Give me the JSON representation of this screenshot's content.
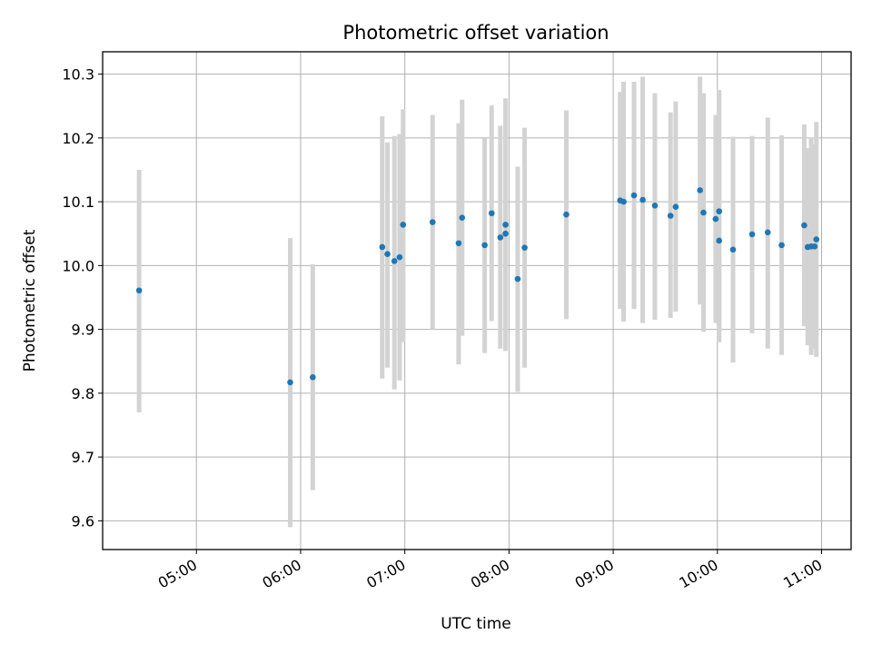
{
  "chart_data": {
    "type": "scatter",
    "title": "Photometric offset variation",
    "xlabel": "UTC time",
    "ylabel": "Photometric offset",
    "x_unit": "UTC time (HH:MM)",
    "xlim": [
      "04:06",
      "11:17"
    ],
    "ylim": [
      9.555,
      10.335
    ],
    "xticks": [
      "05:00",
      "06:00",
      "07:00",
      "08:00",
      "09:00",
      "10:00",
      "11:00"
    ],
    "yticks": [
      "9.6",
      "9.7",
      "9.8",
      "9.9",
      "10.0",
      "10.1",
      "10.2",
      "10.3"
    ],
    "grid": true,
    "legend": "none",
    "colors": {
      "point": "#1f77b4",
      "errorbar": "#d3d3d3",
      "grid": "#b0b0b0"
    },
    "points": [
      {
        "x": "04:27",
        "y": 9.961,
        "low": 9.77,
        "high": 10.15
      },
      {
        "x": "05:54",
        "y": 9.817,
        "low": 9.59,
        "high": 10.043
      },
      {
        "x": "06:07",
        "y": 9.825,
        "low": 9.648,
        "high": 10.002
      },
      {
        "x": "06:47",
        "y": 10.029,
        "low": 9.823,
        "high": 10.234
      },
      {
        "x": "06:50",
        "y": 10.018,
        "low": 9.84,
        "high": 10.193
      },
      {
        "x": "06:54",
        "y": 10.007,
        "low": 9.806,
        "high": 10.203
      },
      {
        "x": "06:57",
        "y": 10.013,
        "low": 9.82,
        "high": 10.206
      },
      {
        "x": "06:59",
        "y": 10.064,
        "low": 9.88,
        "high": 10.245
      },
      {
        "x": "07:16",
        "y": 10.068,
        "low": 9.9,
        "high": 10.236
      },
      {
        "x": "07:31",
        "y": 10.035,
        "low": 9.845,
        "high": 10.223
      },
      {
        "x": "07:33",
        "y": 10.075,
        "low": 9.89,
        "high": 10.26
      },
      {
        "x": "07:46",
        "y": 10.032,
        "low": 9.863,
        "high": 10.199
      },
      {
        "x": "07:50",
        "y": 10.082,
        "low": 9.913,
        "high": 10.251
      },
      {
        "x": "07:55",
        "y": 10.044,
        "low": 9.87,
        "high": 10.219
      },
      {
        "x": "07:58",
        "y": 10.064,
        "low": 9.866,
        "high": 10.262
      },
      {
        "x": "07:58",
        "y": 10.05,
        "low": 9.866,
        "high": 10.234
      },
      {
        "x": "08:05",
        "y": 9.979,
        "low": 9.802,
        "high": 10.155
      },
      {
        "x": "08:09",
        "y": 10.028,
        "low": 9.84,
        "high": 10.216
      },
      {
        "x": "08:33",
        "y": 10.08,
        "low": 9.916,
        "high": 10.243
      },
      {
        "x": "09:04",
        "y": 10.102,
        "low": 9.932,
        "high": 10.272
      },
      {
        "x": "09:06",
        "y": 10.1,
        "low": 9.912,
        "high": 10.288
      },
      {
        "x": "09:12",
        "y": 10.11,
        "low": 9.932,
        "high": 10.288
      },
      {
        "x": "09:17",
        "y": 10.103,
        "low": 9.91,
        "high": 10.296
      },
      {
        "x": "09:24",
        "y": 10.094,
        "low": 9.915,
        "high": 10.27
      },
      {
        "x": "09:33",
        "y": 10.078,
        "low": 9.918,
        "high": 10.24
      },
      {
        "x": "09:36",
        "y": 10.092,
        "low": 9.928,
        "high": 10.257
      },
      {
        "x": "09:50",
        "y": 10.118,
        "low": 9.939,
        "high": 10.296
      },
      {
        "x": "09:52",
        "y": 10.083,
        "low": 9.896,
        "high": 10.27
      },
      {
        "x": "09:59",
        "y": 10.073,
        "low": 9.91,
        "high": 10.236
      },
      {
        "x": "10:01",
        "y": 10.085,
        "low": 9.896,
        "high": 10.275
      },
      {
        "x": "10:01",
        "y": 10.039,
        "low": 9.88,
        "high": 10.198
      },
      {
        "x": "10:09",
        "y": 10.025,
        "low": 9.848,
        "high": 10.202
      },
      {
        "x": "10:20",
        "y": 10.049,
        "low": 9.894,
        "high": 10.203
      },
      {
        "x": "10:29",
        "y": 10.052,
        "low": 9.87,
        "high": 10.232
      },
      {
        "x": "10:37",
        "y": 10.032,
        "low": 9.86,
        "high": 10.204
      },
      {
        "x": "10:50",
        "y": 10.063,
        "low": 9.905,
        "high": 10.221
      },
      {
        "x": "10:52",
        "y": 10.029,
        "low": 9.875,
        "high": 10.184
      },
      {
        "x": "10:54",
        "y": 10.03,
        "low": 9.86,
        "high": 10.201
      },
      {
        "x": "10:56",
        "y": 10.03,
        "low": 9.87,
        "high": 10.19
      },
      {
        "x": "10:57",
        "y": 10.041,
        "low": 9.857,
        "high": 10.225
      }
    ]
  }
}
